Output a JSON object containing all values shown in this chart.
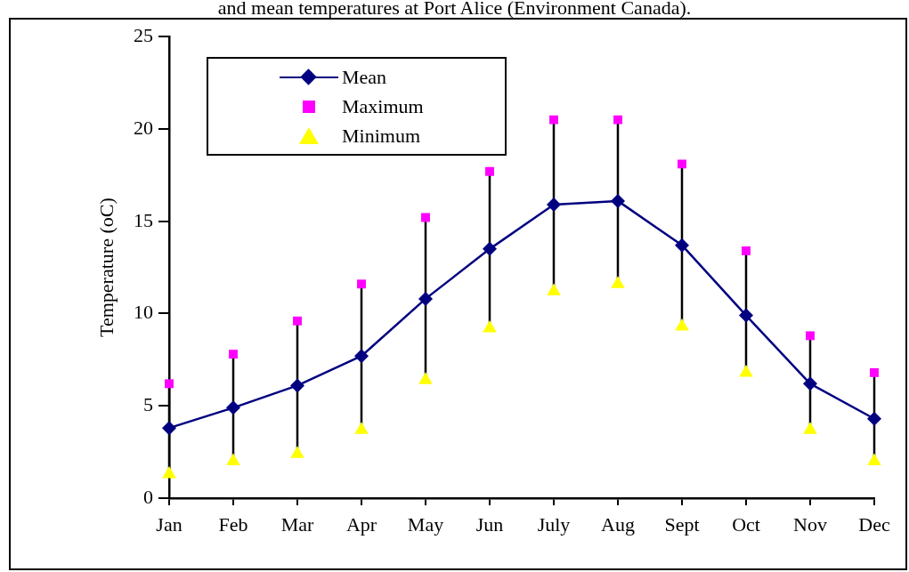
{
  "chart_data": {
    "type": "line",
    "title": "and mean temperatures at Port Alice (Environment Canada).",
    "ylabel": "Temperature (oC)",
    "categories": [
      "Jan",
      "Feb",
      "Mar",
      "Apr",
      "May",
      "Jun",
      "July",
      "Aug",
      "Sept",
      "Oct",
      "Nov",
      "Dec"
    ],
    "ylim": [
      0,
      25
    ],
    "yticks": [
      0,
      5,
      10,
      15,
      20,
      25
    ],
    "grid": false,
    "legend": "top left",
    "series": [
      {
        "name": "Mean",
        "type": "line",
        "color": "#000080",
        "marker": "diamond",
        "values": [
          3.8,
          4.9,
          6.1,
          7.7,
          10.8,
          13.5,
          15.9,
          16.1,
          13.7,
          9.9,
          6.2,
          4.3
        ]
      },
      {
        "name": "Maximum",
        "type": "scatter",
        "color": "#ff00ff",
        "marker": "square",
        "values": [
          6.2,
          7.8,
          9.6,
          11.6,
          15.2,
          17.7,
          20.5,
          20.5,
          18.1,
          13.4,
          8.8,
          6.8
        ]
      },
      {
        "name": "Minimum",
        "type": "scatter",
        "color": "#ffff00",
        "marker": "triangle",
        "values": [
          1.3,
          2.0,
          2.4,
          3.7,
          6.4,
          9.2,
          11.2,
          11.6,
          9.3,
          6.8,
          3.7,
          2.0
        ]
      }
    ]
  }
}
